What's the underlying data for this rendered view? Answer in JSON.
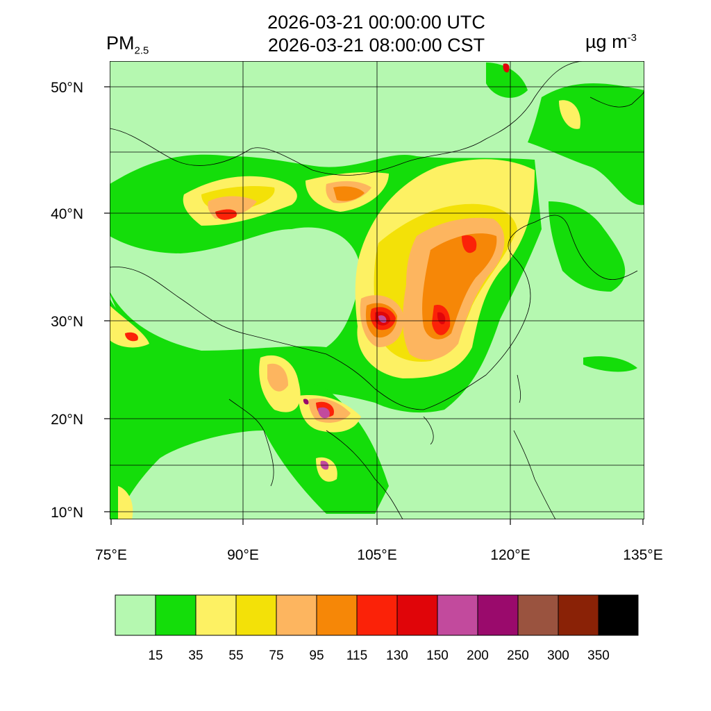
{
  "title": {
    "utc": "2026-03-21 00:00:00 UTC",
    "local": "2026-03-21 08:00:00 CST"
  },
  "variable": {
    "name": "PM",
    "subscript": "2.5"
  },
  "unit": {
    "text": "µg m",
    "superscript": "-3"
  },
  "axes": {
    "lat_labels": [
      "50°N",
      "40°N",
      "30°N",
      "20°N",
      "10°N"
    ],
    "lon_labels": [
      "75°E",
      "90°E",
      "105°E",
      "120°E",
      "135°E"
    ]
  },
  "colorbar": {
    "colors": [
      "#b5f8b0",
      "#14dd0a",
      "#fdf163",
      "#f3e108",
      "#fdb55f",
      "#f68707",
      "#fb2208",
      "#e00509",
      "#c24a9d",
      "#9a0a6c",
      "#9a533f",
      "#8a2206",
      "#000000"
    ],
    "labels": [
      "15",
      "35",
      "55",
      "75",
      "95",
      "115",
      "130",
      "150",
      "200",
      "250",
      "300",
      "350"
    ]
  },
  "colors": {
    "background": "#b5f8b0",
    "frame": "#000000"
  }
}
